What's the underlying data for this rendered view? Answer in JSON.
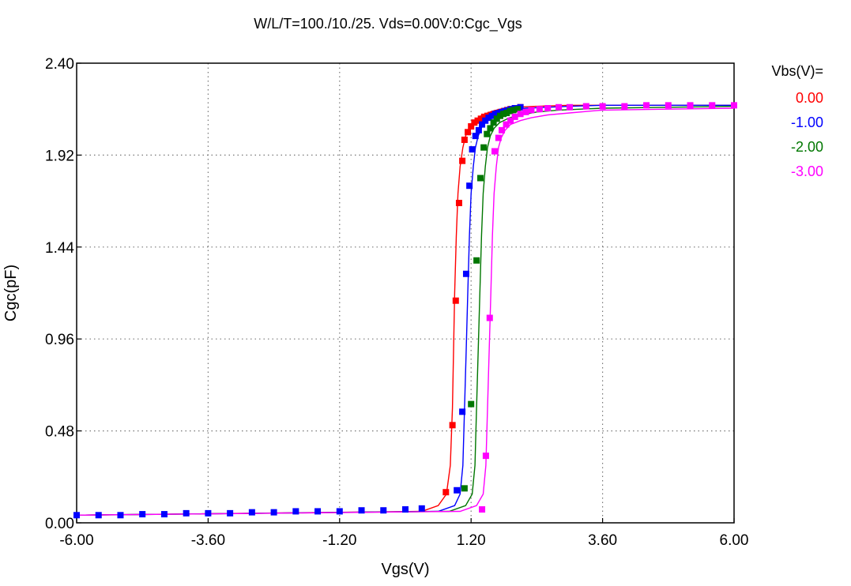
{
  "chart_data": {
    "type": "line",
    "title": "W/L/T=100./10./25.  Vds=0.00V:0:Cgc_Vgs",
    "xlabel": "Vgs(V)",
    "ylabel": "Cgc(pF)",
    "xlim": [
      -6.0,
      6.0
    ],
    "ylim": [
      0.0,
      2.4
    ],
    "xticks": [
      -6.0,
      -3.6,
      -1.2,
      1.2,
      3.6,
      6.0
    ],
    "xtick_labels": [
      "-6.00",
      "-3.60",
      "-1.20",
      "1.20",
      "3.60",
      "6.00"
    ],
    "yticks": [
      0.0,
      0.48,
      0.96,
      1.44,
      1.92,
      2.4
    ],
    "ytick_labels": [
      "0.00",
      "0.48",
      "0.96",
      "1.44",
      "1.92",
      "2.40"
    ],
    "grid": true,
    "legend_title": "Vbs(V)=",
    "legend_position": "right",
    "series": [
      {
        "name": "0.00",
        "color": "#ff0000",
        "line": {
          "x": [
            -6,
            0.3,
            0.6,
            0.75,
            0.82,
            0.86,
            0.88,
            0.9,
            0.93,
            0.96,
            1.0,
            1.05,
            1.1,
            1.2,
            1.4,
            1.6,
            1.8,
            2.0,
            2.4,
            3.0,
            3.6,
            4.8,
            6.0
          ],
          "y": [
            0.04,
            0.06,
            0.09,
            0.15,
            0.3,
            0.6,
            0.9,
            1.2,
            1.5,
            1.72,
            1.86,
            1.96,
            2.02,
            2.08,
            2.13,
            2.15,
            2.165,
            2.17,
            2.175,
            2.18,
            2.18,
            2.18,
            2.18
          ]
        },
        "points": {
          "x": [
            0.74,
            0.86,
            0.92,
            0.98,
            1.04,
            1.08,
            1.14,
            1.2,
            1.26,
            1.32,
            1.38,
            1.44,
            1.5,
            1.56,
            1.62,
            1.68,
            1.74,
            1.8,
            1.86,
            1.92,
            2.0,
            2.1
          ],
          "y": [
            0.16,
            0.51,
            1.16,
            1.67,
            1.89,
            2.0,
            2.04,
            2.07,
            2.09,
            2.1,
            2.11,
            2.12,
            2.125,
            2.13,
            2.135,
            2.14,
            2.145,
            2.15,
            2.155,
            2.16,
            2.165,
            2.17
          ]
        }
      },
      {
        "name": "-1.00",
        "color": "#0000ff",
        "line": {
          "x": [
            -6,
            0.6,
            0.9,
            1.0,
            1.05,
            1.08,
            1.11,
            1.14,
            1.17,
            1.2,
            1.24,
            1.28,
            1.33,
            1.4,
            1.5,
            1.7,
            1.9,
            2.2,
            2.6,
            3.0,
            3.6,
            4.8,
            6.0
          ],
          "y": [
            0.04,
            0.06,
            0.09,
            0.15,
            0.3,
            0.6,
            0.9,
            1.2,
            1.5,
            1.72,
            1.86,
            1.96,
            2.02,
            2.07,
            2.11,
            2.14,
            2.155,
            2.165,
            2.17,
            2.175,
            2.18,
            2.18,
            2.18
          ]
        },
        "points": {
          "x": [
            0.94,
            1.04,
            1.11,
            1.17,
            1.22,
            1.28,
            1.34,
            1.4,
            1.46,
            1.52,
            1.58,
            1.64,
            1.7,
            1.76,
            1.82,
            1.88,
            1.94,
            2.0,
            2.1
          ],
          "y": [
            0.17,
            0.58,
            1.3,
            1.76,
            1.95,
            2.02,
            2.05,
            2.08,
            2.1,
            2.115,
            2.125,
            2.135,
            2.14,
            2.145,
            2.15,
            2.155,
            2.16,
            2.165,
            2.17
          ]
        }
      },
      {
        "name": "-2.00",
        "color": "#007700",
        "line": {
          "x": [
            -6,
            0.8,
            1.1,
            1.22,
            1.27,
            1.3,
            1.33,
            1.36,
            1.39,
            1.42,
            1.46,
            1.5,
            1.55,
            1.62,
            1.72,
            1.9,
            2.1,
            2.4,
            2.8,
            3.2,
            3.6,
            4.8,
            6.0
          ],
          "y": [
            0.04,
            0.06,
            0.09,
            0.15,
            0.3,
            0.6,
            0.9,
            1.2,
            1.5,
            1.72,
            1.86,
            1.96,
            2.02,
            2.06,
            2.09,
            2.115,
            2.13,
            2.145,
            2.155,
            2.16,
            2.165,
            2.17,
            2.175
          ]
        },
        "points": {
          "x": [
            1.08,
            1.2,
            1.3,
            1.37,
            1.43,
            1.49,
            1.55,
            1.61,
            1.67,
            1.73,
            1.79,
            1.85,
            1.91,
            1.97,
            2.05
          ],
          "y": [
            0.18,
            0.62,
            1.37,
            1.8,
            1.96,
            2.03,
            2.06,
            2.09,
            2.11,
            2.125,
            2.135,
            2.14,
            2.15,
            2.155,
            2.16
          ]
        }
      },
      {
        "name": "-3.00",
        "color": "#ff00ff",
        "line": {
          "x": [
            -6,
            1.0,
            1.3,
            1.42,
            1.47,
            1.5,
            1.53,
            1.56,
            1.59,
            1.62,
            1.66,
            1.7,
            1.75,
            1.82,
            1.92,
            2.1,
            2.3,
            2.6,
            3.0,
            3.4,
            3.6,
            4.8,
            6.0
          ],
          "y": [
            0.04,
            0.06,
            0.09,
            0.15,
            0.3,
            0.6,
            0.9,
            1.2,
            1.5,
            1.72,
            1.86,
            1.96,
            2.01,
            2.05,
            2.08,
            2.1,
            2.115,
            2.13,
            2.14,
            2.15,
            2.155,
            2.16,
            2.165
          ]
        },
        "points": {
          "x": [
            1.4,
            1.47,
            1.54,
            1.63,
            1.7,
            1.76,
            1.84,
            1.92,
            2.0,
            2.1,
            2.2,
            2.3,
            2.45,
            2.6,
            2.8,
            3.0,
            3.3,
            3.6,
            4.0,
            4.4,
            4.8,
            5.2,
            5.6,
            6.0
          ],
          "y": [
            0.07,
            0.35,
            1.07,
            1.94,
            2.01,
            2.05,
            2.08,
            2.1,
            2.12,
            2.135,
            2.145,
            2.155,
            2.16,
            2.165,
            2.17,
            2.17,
            2.175,
            2.175,
            2.175,
            2.18,
            2.18,
            2.18,
            2.18,
            2.18
          ]
        }
      }
    ],
    "off_points": {
      "color": "#0000ff",
      "x": [
        -6,
        -5.6,
        -5.2,
        -4.8,
        -4.4,
        -4.0,
        -3.6,
        -3.2,
        -2.8,
        -2.4,
        -2.0,
        -1.6,
        -1.2,
        -0.8,
        -0.4,
        0.0,
        0.3
      ],
      "y": [
        0.04,
        0.04,
        0.04,
        0.045,
        0.045,
        0.05,
        0.05,
        0.05,
        0.055,
        0.055,
        0.06,
        0.06,
        0.06,
        0.065,
        0.065,
        0.07,
        0.075
      ]
    }
  }
}
